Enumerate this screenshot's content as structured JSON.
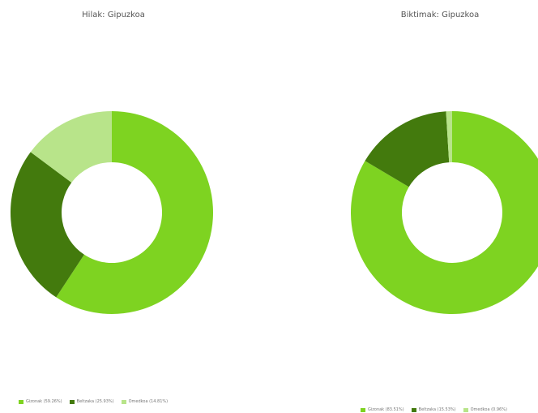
{
  "colors": {
    "lightgreen": "#7ed321",
    "darkgreen": "#437a0d",
    "palegreen": "#b8e48a"
  },
  "chart_data": [
    {
      "type": "pie",
      "style": "donut",
      "title": "Hilak: Gipuzkoa",
      "legend_position": "bottom",
      "slices": [
        {
          "label": "Gizonak (59.26%)",
          "value": 59.26,
          "color": "#7ed321"
        },
        {
          "label": "Beltzaka (25.93%)",
          "value": 25.93,
          "color": "#437a0d"
        },
        {
          "label": "Omedkoa (14.81%)",
          "value": 14.81,
          "color": "#b8e48a"
        }
      ]
    },
    {
      "type": "pie",
      "style": "donut",
      "title": "Biktimak: Gipuzkoa",
      "legend_position": "bottom",
      "slices": [
        {
          "label": "Gizonak (83.51%)",
          "value": 83.51,
          "color": "#7ed321"
        },
        {
          "label": "Beltzaka (15.53%)",
          "value": 15.53,
          "color": "#437a0d"
        },
        {
          "label": "Omedkoa (0.96%)",
          "value": 0.96,
          "color": "#b8e48a"
        }
      ]
    }
  ]
}
